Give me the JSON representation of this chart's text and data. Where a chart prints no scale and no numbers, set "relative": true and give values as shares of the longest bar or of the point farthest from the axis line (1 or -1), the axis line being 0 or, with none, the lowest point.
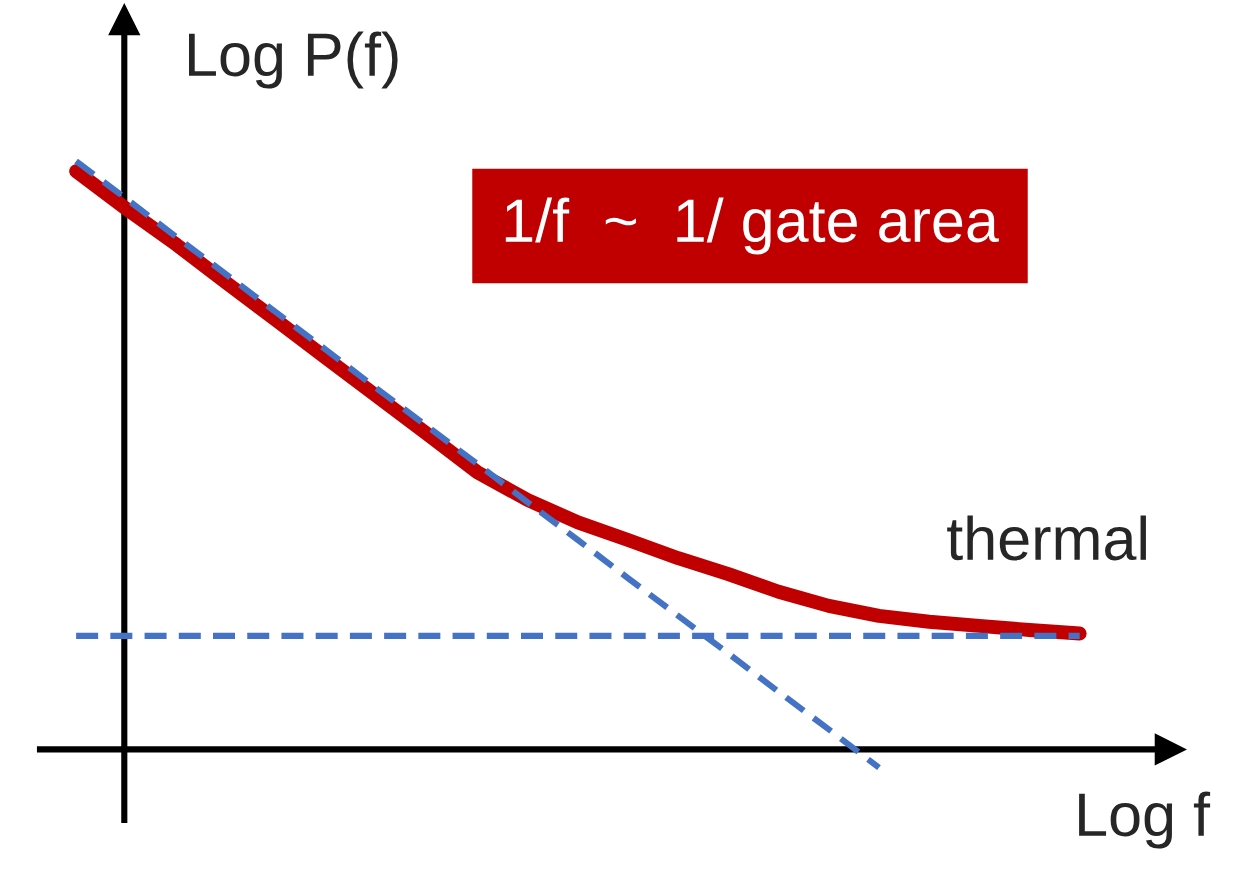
{
  "chart_data": {
    "type": "line",
    "relative": true,
    "legend": false,
    "xlabel": "Log f",
    "ylabel": "Log P(f)",
    "annotations": [
      "1/f  ~  1/ gate area",
      "thermal"
    ],
    "categories": [
      null,
      null,
      null,
      null,
      null,
      null,
      null,
      null,
      null,
      null,
      null,
      null,
      null,
      null,
      null,
      null,
      null,
      null,
      null,
      null,
      null
    ],
    "series": [
      {
        "color": "#4472c4",
        "line_style": "dashed",
        "values": [
          1.0,
          0.936,
          0.871,
          0.807,
          0.742,
          0.678,
          0.613,
          0.549,
          0.485,
          0.42,
          0.356,
          0.291,
          0.227,
          0.163,
          0.098,
          0.034,
          -0.031,
          null,
          null,
          null,
          null
        ]
      },
      {
        "color": "#4472c4",
        "line_style": "dashed",
        "values": [
          0.193,
          0.193,
          0.193,
          0.193,
          0.193,
          0.193,
          0.193,
          0.193,
          0.193,
          0.193,
          0.193,
          0.193,
          0.193,
          0.193,
          0.193,
          0.193,
          0.193,
          0.193,
          0.193,
          0.193,
          0.193
        ]
      },
      {
        "color": "#c00000",
        "line_style": "solid",
        "values": [
          0.983,
          0.919,
          0.858,
          0.793,
          0.729,
          0.664,
          0.6,
          0.536,
          0.471,
          0.424,
          0.386,
          0.356,
          0.325,
          0.298,
          0.268,
          0.244,
          0.227,
          0.217,
          0.21,
          0.203,
          0.197
        ]
      }
    ]
  }
}
